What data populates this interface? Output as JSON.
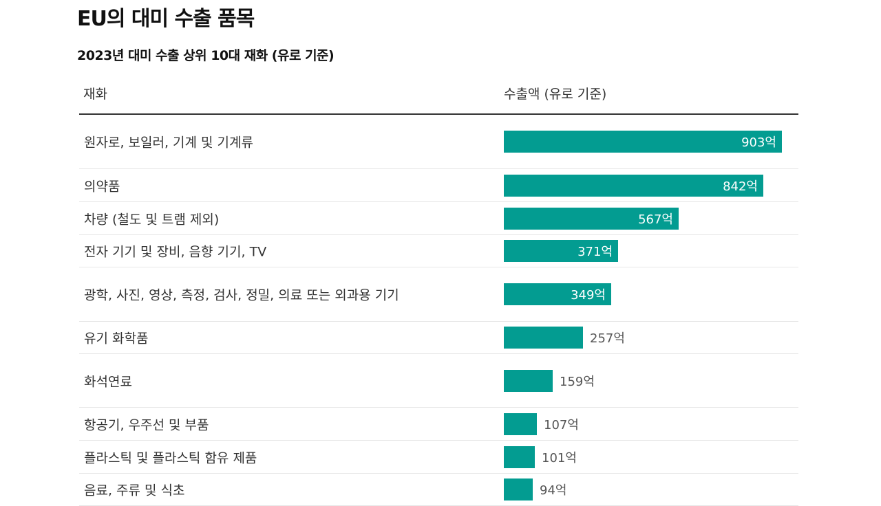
{
  "title": "EU의 대미 수출 품목",
  "subtitle": "2023년 대미 수출 상위 10대 재화 (유로 기준)",
  "table": {
    "col_item": "재화",
    "col_value": "수출액 (유로 기준)"
  },
  "colors": {
    "bar": "#039c91"
  },
  "chart_data": {
    "type": "bar",
    "orientation": "horizontal",
    "title": "EU의 대미 수출 품목",
    "subtitle": "2023년 대미 수출 상위 10대 재화 (유로 기준)",
    "xlabel": "수출액 (유로 기준)",
    "ylabel": "재화",
    "categories": [
      "원자로, 보일러, 기계 및 기계류",
      "의약품",
      "차량 (철도 및 트램 제외)",
      "전자 기기 및 장비, 음향 기기, TV",
      "광학, 사진, 영상, 측정, 검사, 정밀, 의료 또는 외과용 기기",
      "유기 화학품",
      "화석연료",
      "항공기, 우주선 및 부품",
      "플라스틱 및 플라스틱 함유 제품",
      "음료, 주류 및 식초"
    ],
    "values": [
      903,
      842,
      567,
      371,
      349,
      257,
      159,
      107,
      101,
      94
    ],
    "labels": [
      "903억",
      "842억",
      "567억",
      "371억",
      "349억",
      "257억",
      "159억",
      "107억",
      "101억",
      "94억"
    ]
  }
}
